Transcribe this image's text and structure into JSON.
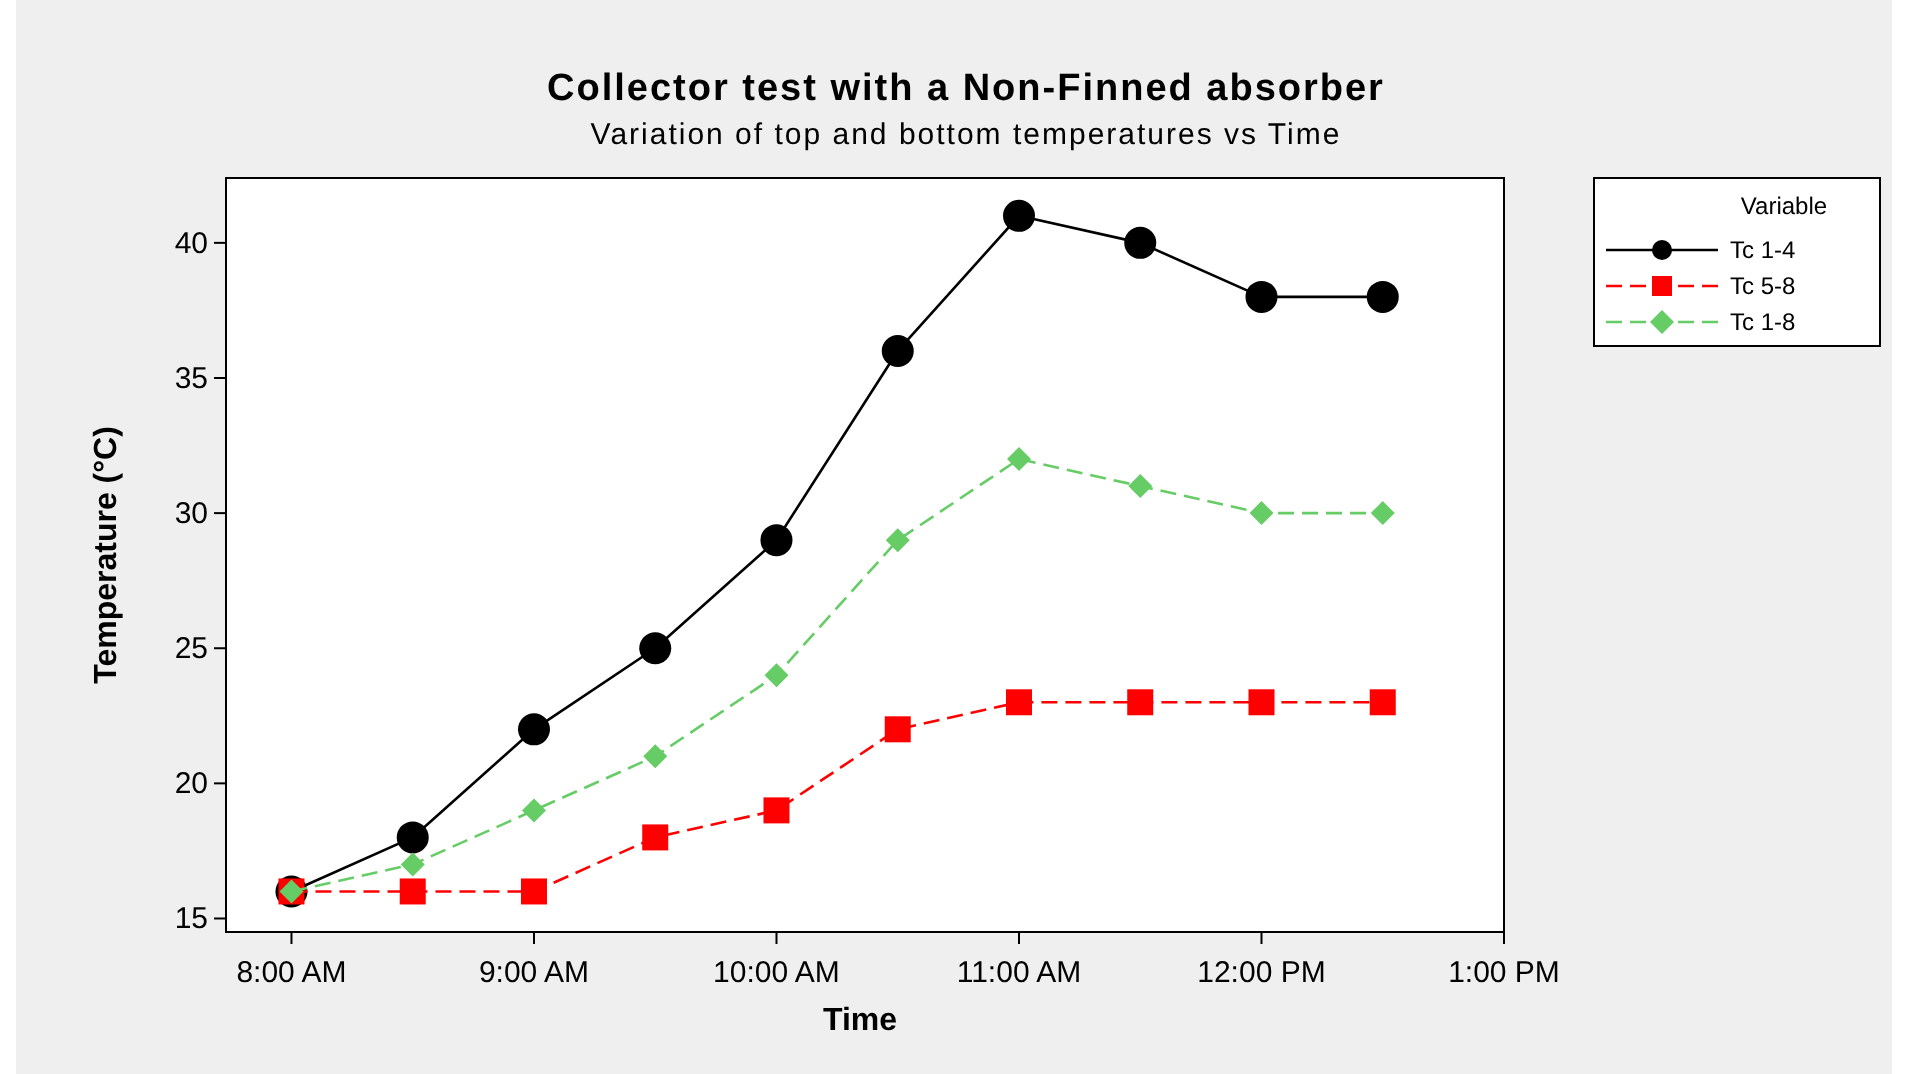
{
  "chart_data": {
    "type": "line",
    "title": "Collector test with a  Non-Finned absorber",
    "subtitle": "Variation of top and bottom temperatures vs Time",
    "xlabel": "Time",
    "ylabel": "Temperature (°C)",
    "legend_title": "Variable",
    "legend": "top right",
    "x": [
      8,
      8.5,
      9,
      9.5,
      10,
      10.5,
      11,
      11.5,
      12,
      12.5
    ],
    "xlim": [
      7.73,
      13
    ],
    "xticks": [
      {
        "value": 8,
        "label": "8:00 AM"
      },
      {
        "value": 9,
        "label": "9:00 AM"
      },
      {
        "value": 10,
        "label": "10:00 AM"
      },
      {
        "value": 11,
        "label": "11:00 AM"
      },
      {
        "value": 12,
        "label": "12:00 PM"
      },
      {
        "value": 13,
        "label": "1:00 PM"
      }
    ],
    "ylim": [
      14.5,
      42.4
    ],
    "yticks": [
      15,
      20,
      25,
      30,
      35,
      40
    ],
    "series": [
      {
        "name": "Tc 1-4",
        "color": "#000000",
        "marker": "circle",
        "line_style": "solid",
        "values": [
          16,
          18,
          22,
          25,
          29,
          36,
          41,
          40,
          38,
          38
        ]
      },
      {
        "name": "Tc 5-8",
        "color": "#ff0000",
        "marker": "square",
        "line_style": "dashed",
        "values": [
          16,
          16,
          16,
          18,
          19,
          22,
          23,
          23,
          23,
          23
        ]
      },
      {
        "name": "Tc 1-8",
        "color": "#66cc66",
        "marker": "diamond",
        "line_style": "dashed",
        "values": [
          16,
          17,
          19,
          21,
          24,
          29,
          32,
          31,
          30,
          30
        ]
      }
    ]
  }
}
